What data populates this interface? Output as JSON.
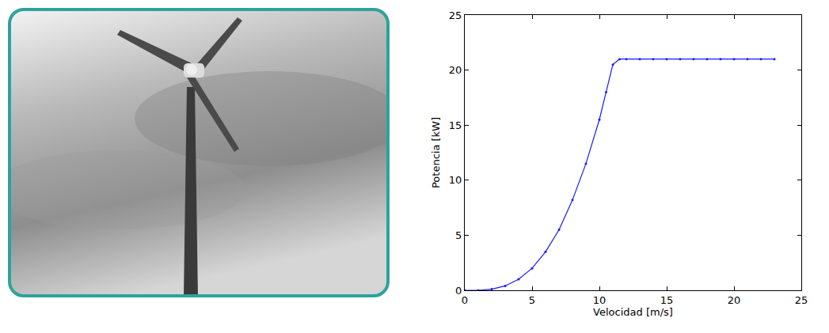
{
  "chart_data": {
    "type": "line",
    "x_label": "Velocidad [m/s]",
    "y_label": "Potencia [kW]",
    "x": [
      0,
      1,
      2,
      3,
      4,
      5,
      6,
      7,
      8,
      9,
      10,
      10.5,
      11,
      11.5,
      12,
      13,
      14,
      15,
      16,
      17,
      18,
      19,
      20,
      21,
      22,
      23
    ],
    "values": [
      0,
      0,
      0.1,
      0.4,
      1.0,
      2.0,
      3.5,
      5.5,
      8.2,
      11.5,
      15.5,
      18,
      20.5,
      21,
      21,
      21,
      21,
      21,
      21,
      21,
      21,
      21,
      21,
      21,
      21,
      21
    ],
    "color": "#1a1aff",
    "marker": "circle",
    "line_style": "solid",
    "xlim": [
      0,
      25
    ],
    "xticks": [
      0,
      5,
      10,
      15,
      20,
      25
    ],
    "ylim": [
      0,
      25
    ],
    "yticks": [
      0,
      5,
      10,
      15,
      20,
      25
    ],
    "grid": false
  }
}
